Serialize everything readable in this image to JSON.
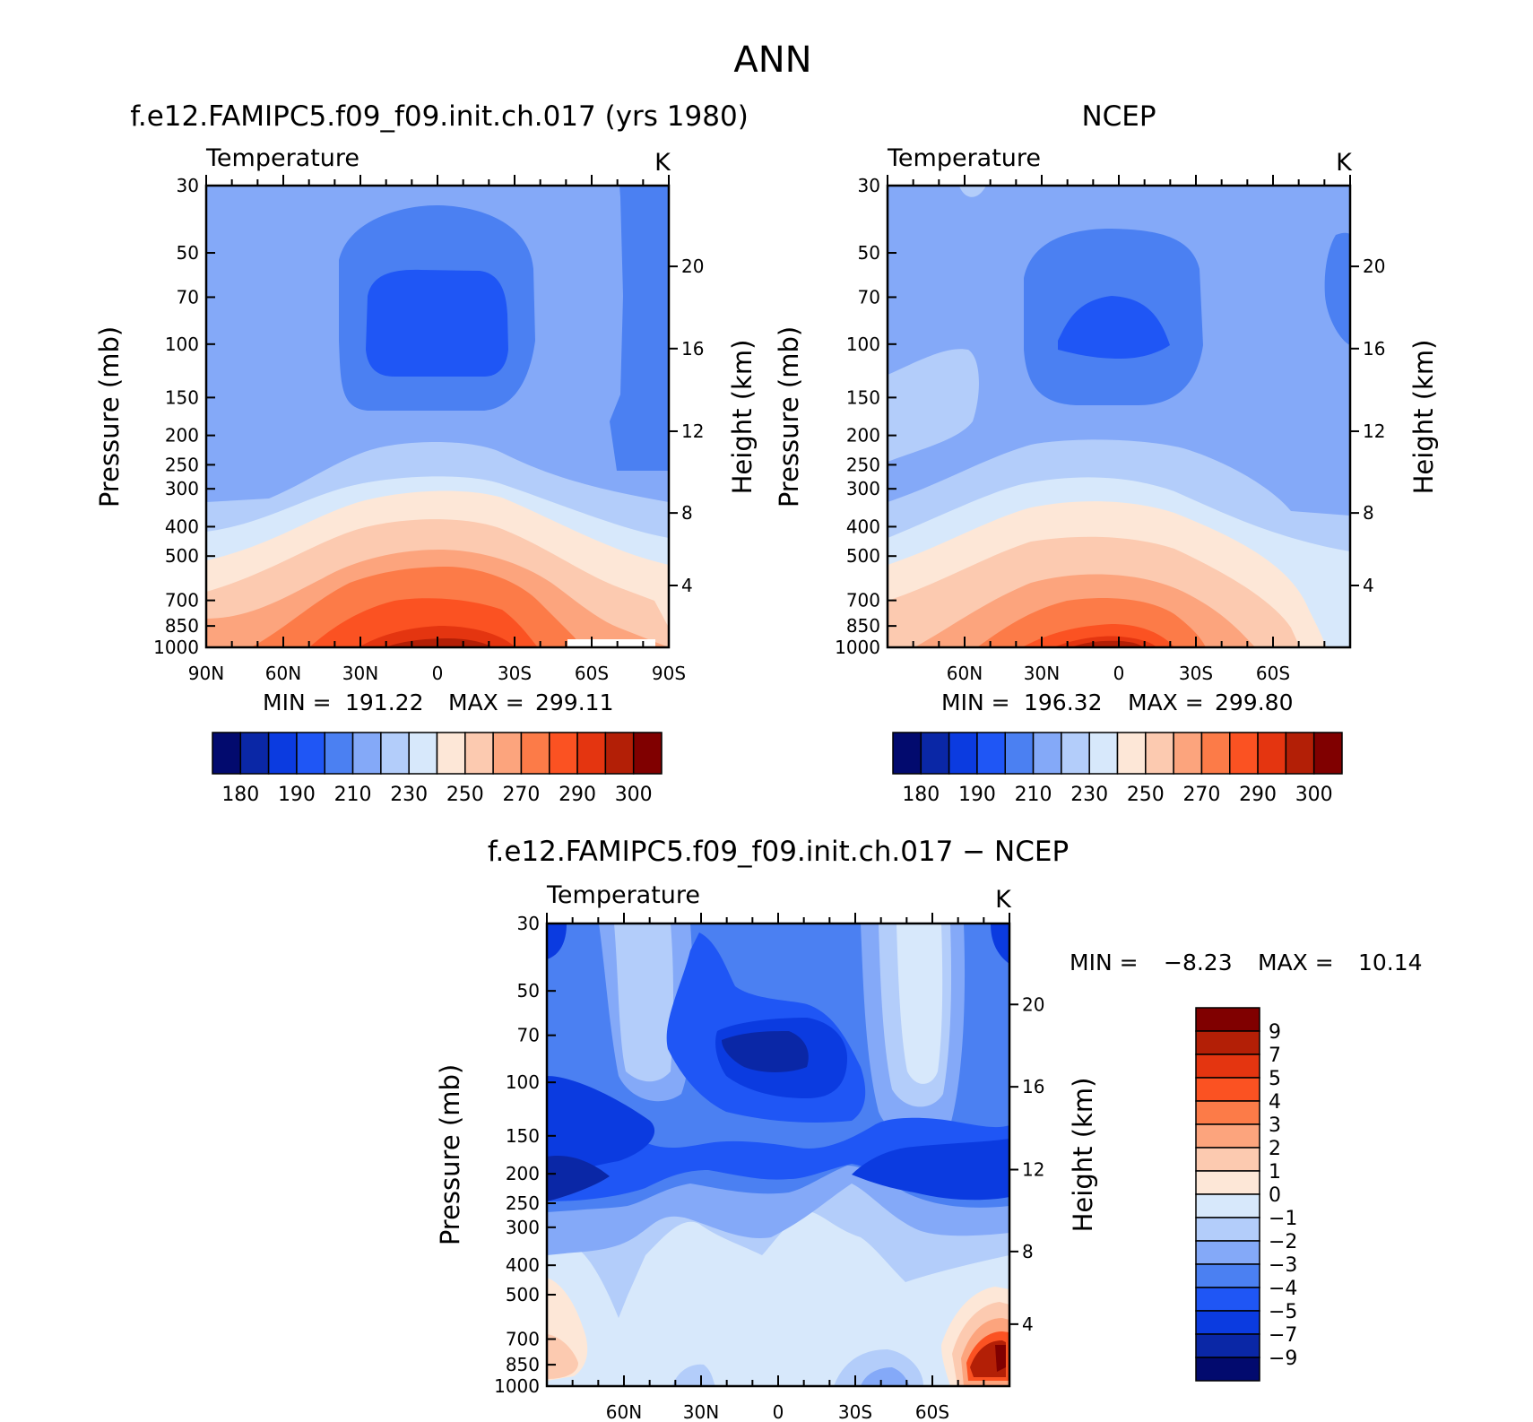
{
  "page_title": "ANN",
  "colors": {
    "abs_scale": [
      "#020a6e",
      "#0a27a6",
      "#0b3be0",
      "#1f56f5",
      "#4b80f2",
      "#84a9f8",
      "#b3cdfa",
      "#d7e8fb",
      "#fde7d7",
      "#fccab0",
      "#fca47d",
      "#fc7b48",
      "#fb5222",
      "#e43510",
      "#b31f06",
      "#800000"
    ],
    "diff_scale": [
      "#020a6e",
      "#0a27a6",
      "#0b3be0",
      "#1f56f5",
      "#4b80f2",
      "#84a9f8",
      "#b3cdfa",
      "#d7e8fb",
      "#fde7d7",
      "#fccab0",
      "#fca47d",
      "#fc7b48",
      "#fb5222",
      "#e43510",
      "#b31f06",
      "#800000"
    ]
  },
  "chart_data": [
    {
      "type": "heatmap",
      "panel_title": "f.e12.FAMIPC5.f09_f09.init.ch.017 (yrs 1980)",
      "left_label": "Temperature",
      "units": "K",
      "ylabel": "Pressure (mb)",
      "y2label": "Height (km)",
      "pressure_ticks": [
        "30",
        "50",
        "70",
        "100",
        "150",
        "200",
        "250",
        "300",
        "400",
        "500",
        "700",
        "850",
        "1000"
      ],
      "height_ticks": [
        "20",
        "16",
        "12",
        "8",
        "4"
      ],
      "x_ticks": [
        "90N",
        "60N",
        "30N",
        "0",
        "30S",
        "60S",
        "90S"
      ],
      "min_label": "MIN =",
      "min": "191.22",
      "max_label": "MAX =",
      "max": "299.11",
      "colorbar_labels": [
        "180",
        "190",
        "210",
        "230",
        "250",
        "270",
        "290",
        "300"
      ]
    },
    {
      "type": "heatmap",
      "panel_title": "NCEP",
      "left_label": "Temperature",
      "units": "K",
      "ylabel": "Pressure (mb)",
      "y2label": "Height (km)",
      "pressure_ticks": [
        "30",
        "50",
        "70",
        "100",
        "150",
        "200",
        "250",
        "300",
        "400",
        "500",
        "700",
        "850",
        "1000"
      ],
      "height_ticks": [
        "20",
        "16",
        "12",
        "8",
        "4"
      ],
      "x_ticks": [
        "60N",
        "30N",
        "0",
        "30S",
        "60S"
      ],
      "min_label": "MIN =",
      "min": "196.32",
      "max_label": "MAX =",
      "max": "299.80",
      "colorbar_labels": [
        "180",
        "190",
        "210",
        "230",
        "250",
        "270",
        "290",
        "300"
      ]
    },
    {
      "type": "heatmap",
      "panel_title": "f.e12.FAMIPC5.f09_f09.init.ch.017 − NCEP",
      "left_label": "Temperature",
      "units": "K",
      "ylabel": "Pressure (mb)",
      "y2label": "Height (km)",
      "pressure_ticks": [
        "30",
        "50",
        "70",
        "100",
        "150",
        "200",
        "250",
        "300",
        "400",
        "500",
        "700",
        "850",
        "1000"
      ],
      "height_ticks": [
        "20",
        "16",
        "12",
        "8",
        "4"
      ],
      "x_ticks": [
        "60N",
        "30N",
        "0",
        "30S",
        "60S"
      ],
      "min_label": "MIN =",
      "min": "−8.23",
      "max_label": "MAX =",
      "max": "10.14",
      "colorbar_labels": [
        "9",
        "7",
        "5",
        "4",
        "3",
        "2",
        "1",
        "0",
        "−1",
        "−2",
        "−3",
        "−4",
        "−5",
        "−7",
        "−9"
      ]
    }
  ]
}
